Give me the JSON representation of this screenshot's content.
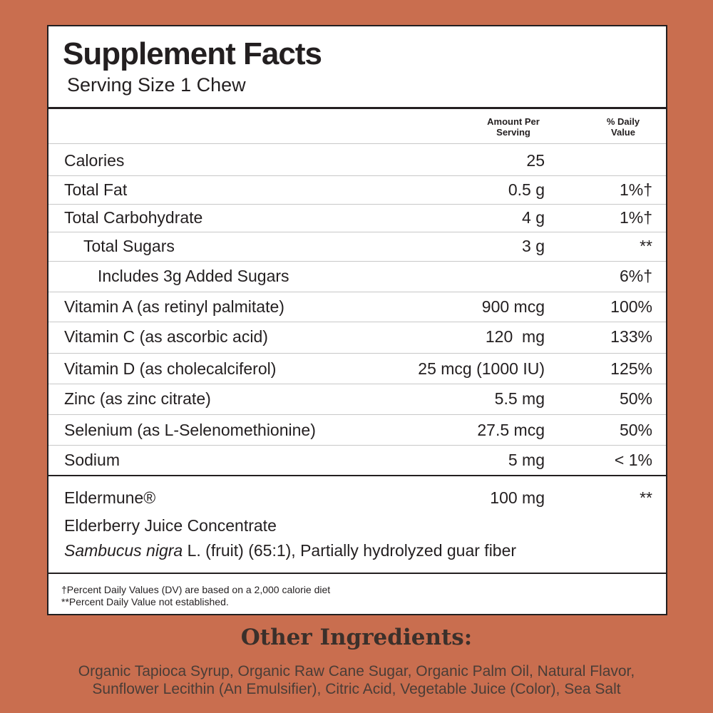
{
  "label": {
    "title": "Supplement Facts",
    "serving_size": "Serving Size 1 Chew",
    "header": {
      "amount": "Amount Per Serving",
      "daily_value": "% Daily Value"
    },
    "rows": [
      {
        "name": "Calories",
        "amount": "25"
      },
      {
        "name": "Total Fat",
        "amount": "0.5 g",
        "daily_value": "1%†"
      },
      {
        "name": "Total Carbohydrate",
        "amount": "4 g",
        "daily_value": "1%†"
      },
      {
        "name": "Total Sugars",
        "amount": "3 g",
        "daily_value": "**"
      },
      {
        "name": "Includes 3g Added Sugars",
        "daily_value": "6%†"
      },
      {
        "name": "Vitamin A (as retinyl palmitate)",
        "amount": "900 mcg",
        "daily_value": "100%"
      },
      {
        "name": "Vitamin C (as ascorbic acid)",
        "amount": "120  mg",
        "daily_value": "133%"
      },
      {
        "name": "Vitamin D (as cholecalciferol)",
        "amount": "25 mcg (1000 IU)",
        "daily_value": "125%"
      },
      {
        "name": "Zinc (as zinc citrate)",
        "amount": "5.5 mg",
        "daily_value": "50%"
      },
      {
        "name": "Selenium (as L-Selenomethionine)",
        "amount": "27.5 mcg",
        "daily_value": "50%"
      },
      {
        "name": "Sodium",
        "amount": "5 mg",
        "daily_value": "< 1%"
      }
    ],
    "blend": {
      "name": "Eldermune®",
      "amount": "100 mg",
      "daily_value": "**",
      "description": "Elderberry Juice Concentrate",
      "source_italic": "Sambucus nigra",
      "source_rest": "L. (fruit) (65:1), Partially hydrolyzed guar fiber"
    },
    "footnotes": [
      "†Percent Daily Values (DV) are based on a 2,000 calorie diet",
      "**Percent Daily Value not established."
    ]
  },
  "other_ingredients": {
    "heading": "Other Ingredients:",
    "lines": [
      "Organic Tapioca Syrup, Organic Raw Cane Sugar, Organic Palm Oil, Natural Flavor,",
      "Sunflower Lecithin (An Emulsifier), Citric Acid, Vegetable Juice (Color), Sea Salt"
    ]
  }
}
